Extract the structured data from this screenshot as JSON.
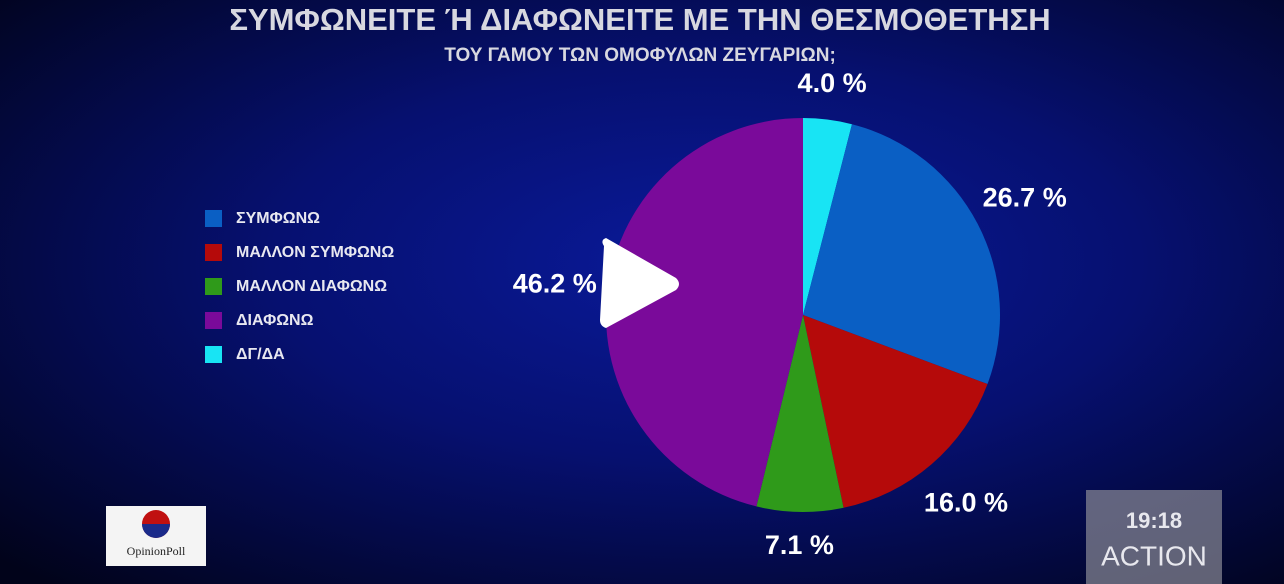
{
  "chart_data": {
    "type": "pie",
    "title": "ΣΥΜΦΩΝΕΙΤΕ Ή ΔΙΑΦΩΝΕΙΤΕ ΜΕ ΤΗΝ ΘΕΣΜΟΘΕΤΗΣΗ",
    "subtitle": "ΤΟΥ ΓΑΜΟΥ ΤΩΝ ΟΜΟΦΥΛΩΝ ΖΕΥΓΑΡΙΩΝ;",
    "categories": [
      "ΣΥΜΦΩΝΩ",
      "ΜΑΛΛΟΝ ΣΥΜΦΩΝΩ",
      "ΜΑΛΛΟΝ ΔΙΑΦΩΝΩ",
      "ΔΙΑΦΩΝΩ",
      "ΔΓ/ΔΑ"
    ],
    "values": [
      26.7,
      16.0,
      7.1,
      46.2,
      4.0
    ],
    "value_labels": [
      "26.7 %",
      "16.0 %",
      "7.1 %",
      "46.2 %",
      "4.0 %"
    ],
    "colors": [
      "#0a5fc4",
      "#b50a0a",
      "#2f9a1a",
      "#7a0a9a",
      "#18e4f4"
    ],
    "legend": "left"
  },
  "logo": "OpinionPoll",
  "overlay": {
    "time": "19:18",
    "channel": "ACTION"
  }
}
